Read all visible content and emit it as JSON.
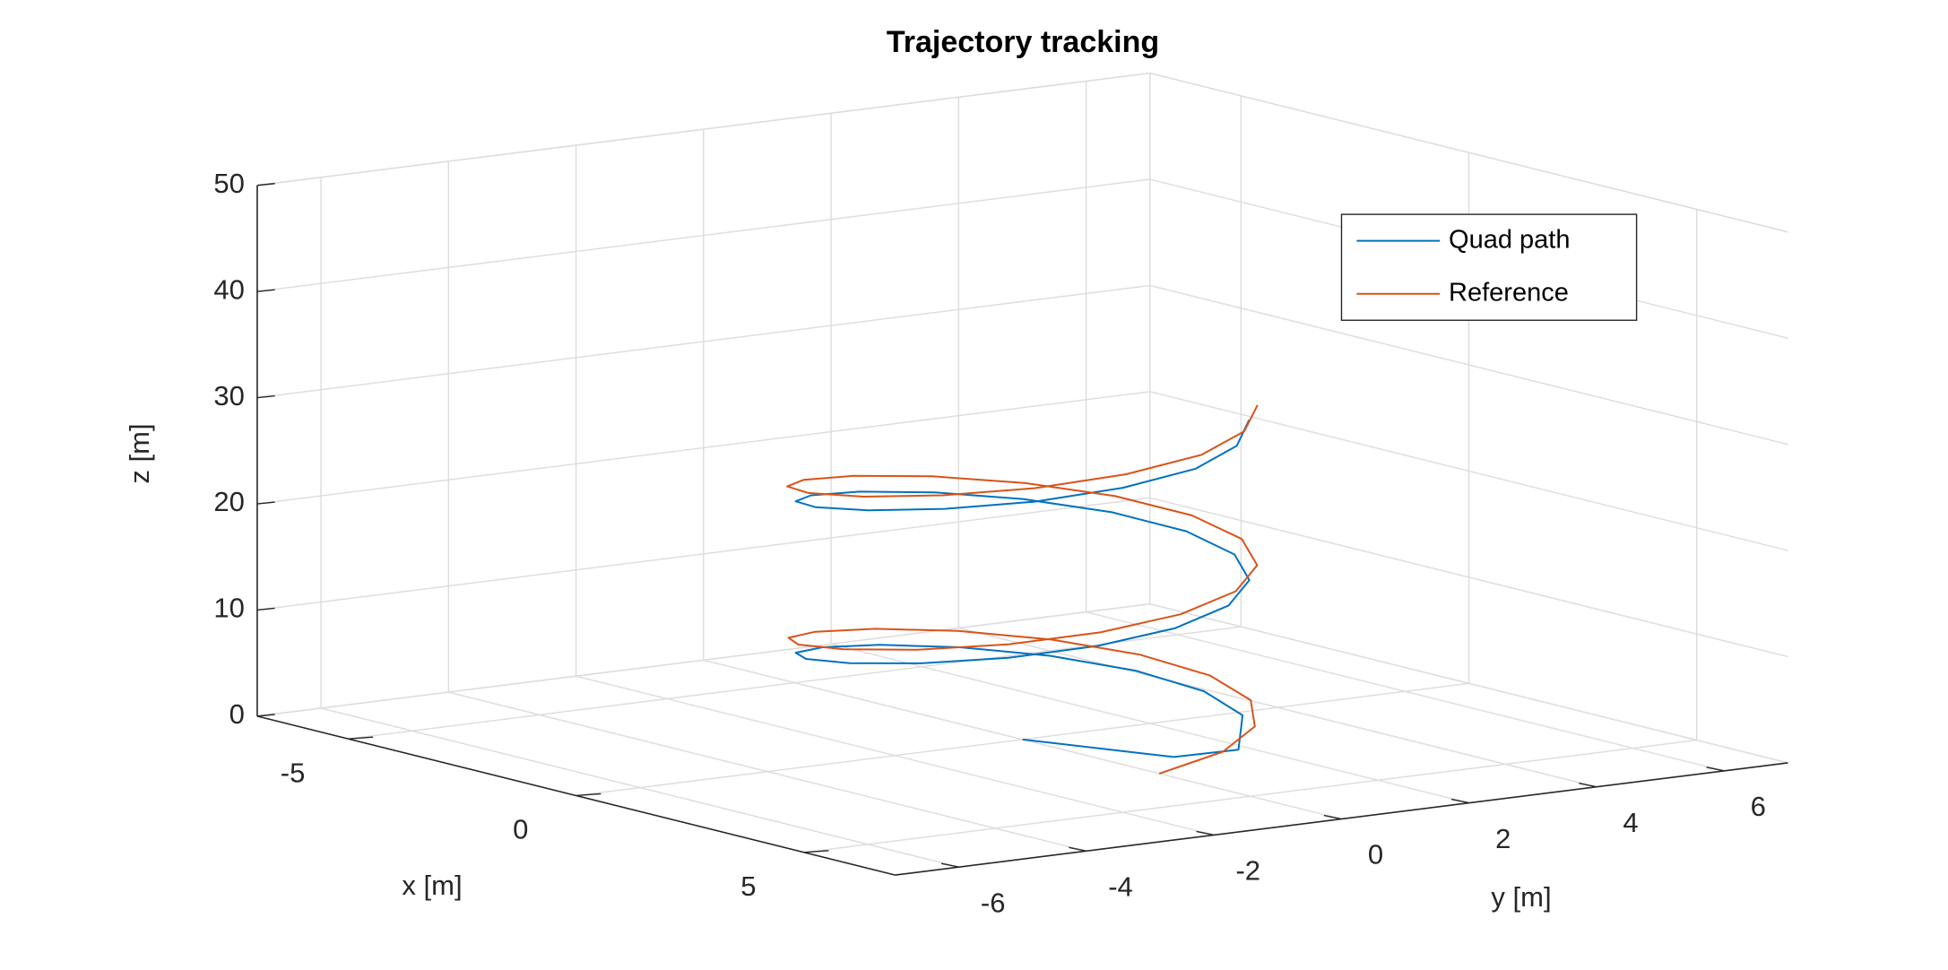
{
  "chart_data": {
    "type": "line3d",
    "title": "Trajectory tracking",
    "xlabel": "x [m]",
    "ylabel": "y [m]",
    "zlabel": "z [m]",
    "xlim": [
      -7,
      7
    ],
    "ylim": [
      -7,
      7
    ],
    "zlim": [
      0,
      50
    ],
    "xticks": [
      -5,
      0,
      5
    ],
    "yticks": [
      -6,
      -4,
      -2,
      0,
      2,
      4,
      6
    ],
    "zticks": [
      0,
      10,
      20,
      30,
      40,
      50
    ],
    "grid": true,
    "legend": "northeast",
    "series": [
      {
        "name": "Quad path",
        "color": "#0072bd",
        "x": [
          0,
          2.2,
          2.5,
          1.05,
          -0.08,
          -1.21,
          -2.14,
          -2.73,
          -2.89,
          -2.6,
          -1.9,
          -0.89,
          0.25,
          1.36,
          2.25,
          2.78,
          2.88,
          2.52,
          1.76,
          0.72,
          -0.42,
          -1.51,
          -2.35,
          -2.83,
          -2.86,
          -2.43,
          -1.62,
          -0.55,
          0.59,
          1.64,
          2.45,
          2.86,
          2.85,
          2.38,
          1.53
        ],
        "y": [
          0,
          0.8,
          1.6,
          2.7,
          2.9,
          2.64,
          1.96,
          0.97,
          -0.17,
          -1.28,
          -2.2,
          -2.76,
          -2.89,
          -2.56,
          -1.83,
          -0.81,
          0.34,
          1.43,
          2.3,
          2.81,
          2.87,
          2.48,
          1.7,
          0.65,
          -0.51,
          -1.58,
          -2.4,
          -2.85,
          -2.84,
          -2.39,
          -1.56,
          -0.47,
          0.68,
          1.66,
          2.46
        ],
        "z": [
          0,
          0.1,
          0.5,
          1.36,
          2.28,
          3.2,
          4.12,
          5.04,
          5.96,
          6.88,
          7.8,
          8.72,
          9.64,
          10.56,
          11.48,
          12.4,
          13.32,
          14.24,
          15.16,
          16.08,
          17.0,
          17.92,
          18.84,
          19.76,
          20.68,
          21.6,
          22.52,
          23.44,
          24.36,
          25.28,
          26.2,
          27.12,
          28.04,
          28.96,
          29.88
        ]
      },
      {
        "name": "Reference",
        "color": "#d95319",
        "x": [
          3,
          2.76,
          2.09,
          1.09,
          -0.09,
          -1.25,
          -2.21,
          -2.83,
          -2.99,
          -2.69,
          -1.96,
          -0.92,
          0.26,
          1.41,
          2.33,
          2.88,
          2.98,
          2.61,
          1.82,
          0.74,
          -0.44,
          -1.56,
          -2.43,
          -2.93,
          -2.96,
          -2.52,
          -1.68,
          -0.57,
          0.62,
          1.7,
          2.53,
          2.96,
          2.95,
          2.46,
          1.59
        ],
        "y": [
          0,
          1.17,
          2.15,
          2.8,
          3.0,
          2.73,
          2.03,
          1.01,
          -0.17,
          -1.33,
          -2.27,
          -2.86,
          -2.99,
          -2.65,
          -1.89,
          -0.84,
          0.35,
          1.48,
          2.38,
          2.91,
          2.97,
          2.57,
          1.76,
          0.67,
          -0.53,
          -1.63,
          -2.49,
          -2.95,
          -2.94,
          -2.47,
          -1.61,
          -0.49,
          0.7,
          1.72,
          2.55
        ],
        "z": [
          0,
          0.92,
          1.84,
          2.76,
          3.68,
          4.6,
          5.52,
          6.44,
          7.36,
          8.28,
          9.2,
          10.12,
          11.04,
          11.96,
          12.88,
          13.8,
          14.72,
          15.64,
          16.56,
          17.48,
          18.4,
          19.32,
          20.24,
          21.16,
          22.08,
          23.0,
          23.92,
          24.84,
          25.76,
          26.68,
          27.6,
          28.52,
          29.44,
          30.36,
          31.28
        ]
      }
    ]
  }
}
